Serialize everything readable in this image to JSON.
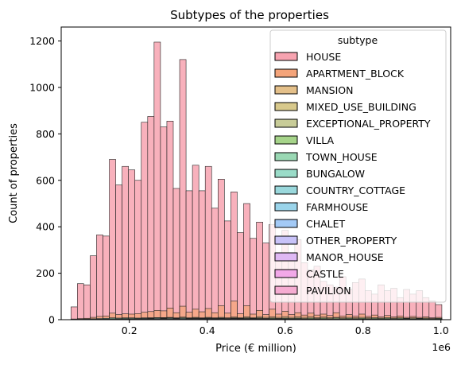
{
  "chart_data": {
    "type": "bar",
    "title": "Subtypes of the properties",
    "xlabel": "Price (€ million)",
    "ylabel": "Count of properties",
    "x_offset_label": "1e6",
    "xlim": [
      0.025,
      1.025
    ],
    "ylim": [
      0,
      1260
    ],
    "xticks": [
      {
        "value": 0.2,
        "label": "0.2"
      },
      {
        "value": 0.4,
        "label": "0.4"
      },
      {
        "value": 0.6,
        "label": "0.6"
      },
      {
        "value": 0.8,
        "label": "0.8"
      },
      {
        "value": 1.0,
        "label": "1.0"
      }
    ],
    "yticks": [
      {
        "value": 0,
        "label": "0"
      },
      {
        "value": 200,
        "label": "200"
      },
      {
        "value": 400,
        "label": "400"
      },
      {
        "value": 600,
        "label": "600"
      },
      {
        "value": 800,
        "label": "800"
      },
      {
        "value": 1000,
        "label": "1000"
      },
      {
        "value": 1200,
        "label": "1200"
      }
    ],
    "bin_start": 0.05,
    "bin_width": 0.01642,
    "legend_title": "subtype",
    "legend_position": "upper right",
    "series": [
      {
        "name": "HOUSE",
        "color": "#f7a3b0",
        "values": [
          55,
          155,
          150,
          275,
          365,
          360,
          690,
          580,
          660,
          645,
          600,
          850,
          875,
          1195,
          830,
          855,
          565,
          1120,
          555,
          665,
          555,
          660,
          480,
          605,
          425,
          550,
          375,
          500,
          350,
          420,
          330,
          410,
          285,
          385,
          265,
          345,
          245,
          215,
          230,
          165,
          150,
          140,
          185,
          130,
          160,
          175,
          125,
          110,
          150,
          125,
          135,
          95,
          130,
          110,
          125,
          95,
          80,
          65
        ]
      },
      {
        "name": "APARTMENT_BLOCK",
        "color": "#f4a47a",
        "values": [
          3,
          5,
          6,
          10,
          14,
          16,
          28,
          22,
          25,
          24,
          26,
          32,
          35,
          40,
          38,
          50,
          30,
          58,
          32,
          45,
          34,
          48,
          30,
          60,
          28,
          80,
          26,
          60,
          24,
          40,
          22,
          45,
          24,
          36,
          22,
          30,
          20,
          28,
          20,
          24,
          18,
          30,
          16,
          22,
          15,
          24,
          14,
          20,
          12,
          18,
          12,
          16,
          10,
          14,
          10,
          12,
          8,
          10
        ]
      },
      {
        "name": "MANSION",
        "color": "#e4c08a",
        "values": [
          0,
          0,
          0,
          1,
          1,
          1,
          2,
          2,
          2,
          3,
          3,
          4,
          4,
          5,
          5,
          6,
          6,
          7,
          6,
          8,
          7,
          9,
          8,
          10,
          8,
          11,
          9,
          12,
          9,
          13,
          10,
          12,
          10,
          13,
          10,
          12,
          10,
          12,
          9,
          11,
          9,
          10,
          8,
          10,
          8,
          10,
          8,
          9,
          7,
          9,
          7,
          8,
          6,
          8,
          6,
          7,
          5,
          6
        ]
      },
      {
        "name": "MIXED_USE_BUILDING",
        "color": "#d8c98c",
        "values": [
          0,
          1,
          1,
          2,
          3,
          3,
          5,
          4,
          6,
          5,
          6,
          7,
          8,
          9,
          9,
          10,
          8,
          11,
          8,
          10,
          8,
          10,
          7,
          9,
          7,
          9,
          6,
          8,
          6,
          8,
          5,
          7,
          5,
          6,
          5,
          6,
          4,
          5,
          4,
          5,
          3,
          4,
          3,
          4,
          3,
          4,
          3,
          3,
          2,
          3,
          2,
          3,
          2,
          2,
          2,
          2,
          1,
          2
        ]
      },
      {
        "name": "EXCEPTIONAL_PROPERTY",
        "color": "#c8cc98",
        "values": [
          0,
          0,
          0,
          0,
          0,
          0,
          1,
          0,
          1,
          1,
          1,
          1,
          1,
          2,
          1,
          2,
          1,
          2,
          1,
          2,
          2,
          2,
          1,
          2,
          2,
          3,
          2,
          3,
          2,
          3,
          2,
          3,
          2,
          3,
          2,
          3,
          2,
          3,
          2,
          3,
          2,
          3,
          2,
          3,
          2,
          3,
          2,
          3,
          2,
          3,
          2,
          3,
          2,
          2,
          2,
          2,
          2,
          2
        ]
      },
      {
        "name": "VILLA",
        "color": "#a6d48a",
        "values": [
          0,
          0,
          0,
          0,
          0,
          1,
          1,
          1,
          1,
          1,
          2,
          2,
          2,
          3,
          3,
          4,
          3,
          4,
          3,
          5,
          4,
          5,
          4,
          6,
          4,
          6,
          5,
          7,
          5,
          7,
          5,
          7,
          5,
          7,
          5,
          7,
          5,
          7,
          5,
          7,
          5,
          7,
          5,
          6,
          5,
          6,
          5,
          6,
          5,
          6,
          4,
          6,
          4,
          5,
          4,
          5,
          4,
          5
        ]
      },
      {
        "name": "TOWN_HOUSE",
        "color": "#9ad8b4",
        "values": [
          1,
          2,
          3,
          4,
          5,
          6,
          8,
          7,
          8,
          8,
          7,
          8,
          8,
          9,
          8,
          8,
          7,
          8,
          7,
          7,
          6,
          7,
          6,
          6,
          5,
          6,
          5,
          5,
          4,
          5,
          4,
          4,
          4,
          4,
          3,
          4,
          3,
          3,
          3,
          3,
          2,
          3,
          2,
          2,
          2,
          2,
          2,
          2,
          1,
          2,
          1,
          2,
          1,
          1,
          1,
          1,
          1,
          1
        ]
      },
      {
        "name": "BUNGALOW",
        "color": "#9adcc8",
        "values": [
          0,
          1,
          1,
          2,
          2,
          3,
          4,
          4,
          5,
          5,
          5,
          6,
          6,
          7,
          6,
          7,
          6,
          7,
          6,
          6,
          5,
          6,
          5,
          5,
          4,
          5,
          4,
          4,
          3,
          4,
          3,
          3,
          3,
          3,
          2,
          3,
          2,
          2,
          2,
          2,
          2,
          2,
          1,
          2,
          1,
          1,
          1,
          1,
          1,
          1,
          1,
          1,
          1,
          1,
          1,
          1,
          0,
          1
        ]
      },
      {
        "name": "COUNTRY_COTTAGE",
        "color": "#9ad8dc",
        "values": [
          0,
          0,
          1,
          1,
          1,
          2,
          2,
          2,
          3,
          3,
          3,
          3,
          4,
          4,
          4,
          4,
          4,
          4,
          4,
          4,
          4,
          4,
          3,
          4,
          3,
          4,
          3,
          3,
          3,
          3,
          2,
          3,
          2,
          3,
          2,
          2,
          2,
          2,
          2,
          2,
          2,
          2,
          1,
          2,
          1,
          2,
          1,
          1,
          1,
          1,
          1,
          1,
          1,
          1,
          1,
          1,
          1,
          1
        ]
      },
      {
        "name": "FARMHOUSE",
        "color": "#9ad4ea",
        "values": [
          0,
          0,
          0,
          1,
          1,
          1,
          2,
          2,
          2,
          2,
          3,
          3,
          3,
          3,
          3,
          4,
          3,
          4,
          3,
          4,
          3,
          4,
          3,
          4,
          3,
          4,
          3,
          4,
          3,
          3,
          3,
          3,
          3,
          3,
          2,
          3,
          2,
          3,
          2,
          3,
          2,
          2,
          2,
          2,
          2,
          2,
          2,
          2,
          2,
          2,
          1,
          2,
          1,
          2,
          1,
          1,
          1,
          1
        ]
      },
      {
        "name": "CHALET",
        "color": "#a3caf6",
        "values": [
          0,
          0,
          0,
          0,
          0,
          0,
          1,
          0,
          1,
          0,
          1,
          1,
          1,
          1,
          1,
          1,
          1,
          1,
          1,
          1,
          1,
          1,
          1,
          1,
          1,
          1,
          1,
          1,
          1,
          1,
          1,
          1,
          1,
          1,
          1,
          1,
          0,
          1,
          0,
          1,
          0,
          1,
          0,
          1,
          0,
          1,
          0,
          0,
          0,
          0,
          0,
          0,
          0,
          0,
          0,
          0,
          0,
          0
        ]
      },
      {
        "name": "OTHER_PROPERTY",
        "color": "#c8c2f8",
        "values": [
          0,
          1,
          1,
          1,
          2,
          2,
          3,
          2,
          3,
          3,
          3,
          3,
          3,
          4,
          3,
          4,
          3,
          4,
          3,
          4,
          3,
          4,
          3,
          4,
          3,
          4,
          3,
          3,
          3,
          3,
          2,
          3,
          2,
          3,
          2,
          3,
          2,
          2,
          2,
          2,
          2,
          2,
          2,
          2,
          1,
          2,
          1,
          2,
          1,
          2,
          1,
          1,
          1,
          1,
          1,
          1,
          1,
          1
        ]
      },
      {
        "name": "MANOR_HOUSE",
        "color": "#dfb8f4",
        "values": [
          0,
          0,
          0,
          0,
          0,
          0,
          0,
          0,
          0,
          0,
          0,
          0,
          0,
          0,
          0,
          1,
          0,
          1,
          0,
          1,
          0,
          1,
          0,
          1,
          1,
          1,
          1,
          1,
          1,
          1,
          1,
          1,
          1,
          1,
          1,
          1,
          1,
          1,
          1,
          1,
          1,
          1,
          1,
          1,
          1,
          1,
          1,
          1,
          1,
          1,
          1,
          1,
          1,
          1,
          1,
          1,
          1,
          1
        ]
      },
      {
        "name": "CASTLE",
        "color": "#f2a8e8",
        "values": [
          0,
          0,
          0,
          0,
          0,
          0,
          0,
          0,
          0,
          0,
          0,
          0,
          0,
          0,
          0,
          0,
          0,
          0,
          0,
          0,
          0,
          0,
          0,
          0,
          0,
          0,
          0,
          0,
          0,
          0,
          0,
          0,
          0,
          0,
          0,
          0,
          0,
          0,
          0,
          0,
          0,
          0,
          0,
          0,
          0,
          0,
          0,
          0,
          0,
          0,
          0,
          0,
          0,
          0,
          0,
          0,
          0,
          1
        ]
      },
      {
        "name": "PAVILION",
        "color": "#f6acd2",
        "values": [
          0,
          0,
          0,
          0,
          1,
          1,
          1,
          1,
          1,
          1,
          1,
          1,
          1,
          2,
          1,
          2,
          1,
          2,
          1,
          2,
          1,
          2,
          1,
          2,
          1,
          2,
          1,
          2,
          1,
          2,
          1,
          2,
          1,
          2,
          1,
          2,
          1,
          2,
          1,
          2,
          1,
          2,
          1,
          2,
          1,
          2,
          1,
          2,
          1,
          2,
          1,
          1,
          1,
          1,
          1,
          1,
          1,
          1
        ]
      }
    ]
  }
}
